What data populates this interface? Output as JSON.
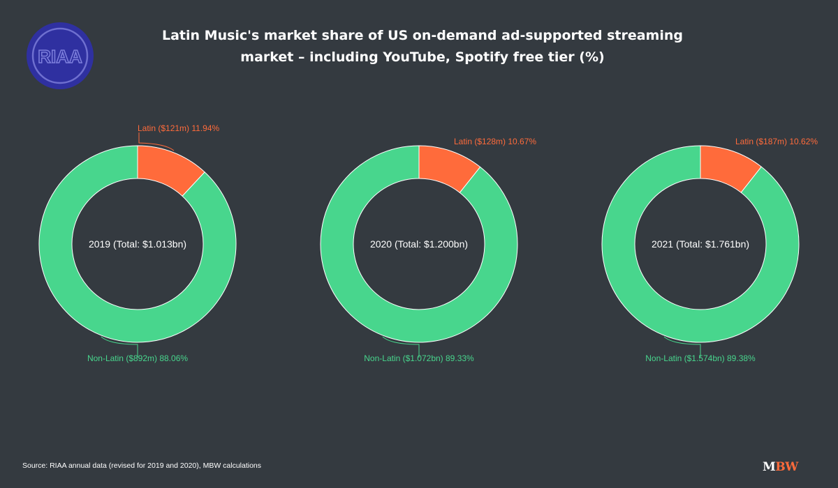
{
  "title_lines": [
    "Latin Music's market share of US on-demand ad-supported streaming",
    "market – including YouTube, Spotify free tier (%)"
  ],
  "source": "Source: RIAA annual data (revised for 2019 and 2020), MBW calculations",
  "logos": {
    "riaa": "RIAA",
    "mbw_m": "M",
    "mbw_bw": "BW"
  },
  "colors": {
    "latin": "#ff6b3b",
    "non_latin": "#48d68d",
    "background": "#343a40",
    "riaa_logo": "#2f30a0",
    "text": "#ffffff"
  },
  "chart_data": [
    {
      "type": "pie",
      "style": "donut",
      "center_label": "2019 (Total: $1.013bn)",
      "slices": [
        {
          "name": "Latin",
          "value": 11.94,
          "label": "Latin ($121m) 11.94%"
        },
        {
          "name": "Non-Latin",
          "value": 88.06,
          "label": "Non-Latin ($892m) 88.06%"
        }
      ]
    },
    {
      "type": "pie",
      "style": "donut",
      "center_label": "2020 (Total: $1.200bn)",
      "slices": [
        {
          "name": "Latin",
          "value": 10.67,
          "label": "Latin ($128m) 10.67%"
        },
        {
          "name": "Non-Latin",
          "value": 89.33,
          "label": "Non-Latin ($1.072bn) 89.33%"
        }
      ]
    },
    {
      "type": "pie",
      "style": "donut",
      "center_label": "2021 (Total: $1.761bn)",
      "slices": [
        {
          "name": "Latin",
          "value": 10.62,
          "label": "Latin ($187m) 10.62%"
        },
        {
          "name": "Non-Latin",
          "value": 89.38,
          "label": "Non-Latin ($1.574bn) 89.38%"
        }
      ]
    }
  ]
}
